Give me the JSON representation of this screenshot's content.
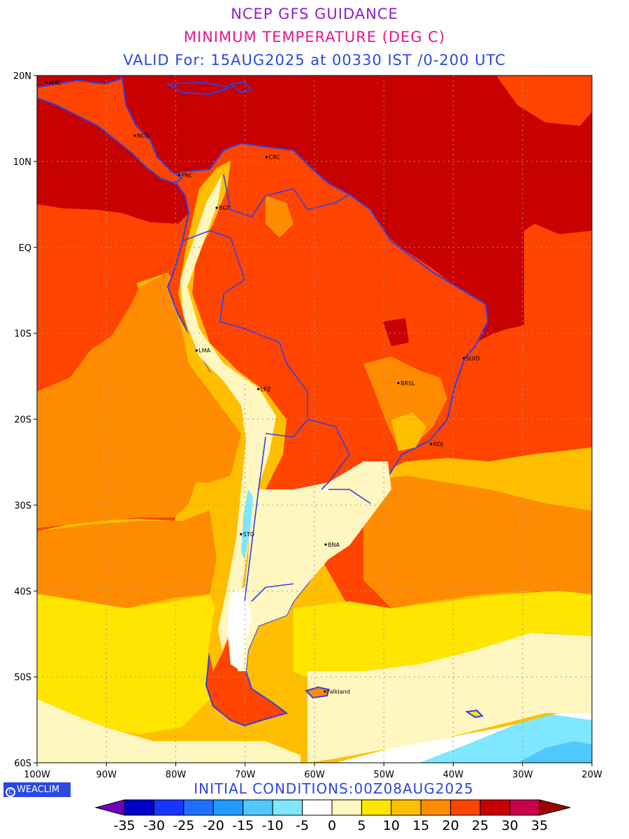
{
  "colors": {
    "title1": "#8a1fd6",
    "title2": "#e8168c",
    "title3": "#2b47e6",
    "ocean_deep": "#c70000",
    "ocean_warm": "#ff4400",
    "coast": "#3040e8",
    "grid": "#9a9a9a"
  },
  "titles": {
    "line1": "NCEP GFS GUIDANCE",
    "line2": "MINIMUM TEMPERATURE (DEG C)",
    "line3": "VALID For: 15AUG2025 at 00330 IST /0-200 UTC"
  },
  "axes": {
    "lon_labels": [
      "100W",
      "90W",
      "80W",
      "70W",
      "60W",
      "50W",
      "40W",
      "30W",
      "20W"
    ],
    "lat_labels": [
      "20N",
      "10N",
      "EQ",
      "10S",
      "20S",
      "30S",
      "40S",
      "50S",
      "60S"
    ],
    "lon_range": [
      -100,
      -20
    ],
    "lat_range": [
      20,
      -60
    ],
    "grid": true
  },
  "cities": [
    {
      "name": "MXC",
      "lon": -98.6,
      "lat": 19.2
    },
    {
      "name": "NCG",
      "lon": -85.9,
      "lat": 13.0
    },
    {
      "name": "CRC",
      "lon": -66.9,
      "lat": 10.5
    },
    {
      "name": "PNC",
      "lon": -79.5,
      "lat": 8.4
    },
    {
      "name": "BGT",
      "lon": -74.1,
      "lat": 4.6
    },
    {
      "name": "LMA",
      "lon": -77.0,
      "lat": -12.0
    },
    {
      "name": "LPZ",
      "lon": -68.1,
      "lat": -16.5
    },
    {
      "name": "BRSL",
      "lon": -47.9,
      "lat": -15.8
    },
    {
      "name": "SLVD",
      "lon": -38.5,
      "lat": -12.9
    },
    {
      "name": "RDJ",
      "lon": -43.2,
      "lat": -22.9
    },
    {
      "name": "STO",
      "lon": -70.6,
      "lat": -33.4
    },
    {
      "name": "BNA",
      "lon": -58.4,
      "lat": -34.6
    },
    {
      "name": "Falkland",
      "lon": -58.5,
      "lat": -51.7
    }
  ],
  "footer": {
    "badge": "WEACLIM",
    "initial": "INITIAL CONDITIONS:00Z08AUG2025"
  },
  "legend": {
    "labels": [
      "-35",
      "-30",
      "-25",
      "-20",
      "-15",
      "-10",
      "-5",
      "0",
      "5",
      "10",
      "15",
      "20",
      "25",
      "30",
      "35"
    ],
    "colors": [
      "#7000bf",
      "#0000c8",
      "#1a34ff",
      "#1f6fff",
      "#1e9cff",
      "#4fc8ff",
      "#7fe7ff",
      "#ffffff",
      "#fff6c0",
      "#ffe500",
      "#ffbf00",
      "#ff8c00",
      "#ff4400",
      "#c70000",
      "#c8004a",
      "#9e0000"
    ]
  }
}
